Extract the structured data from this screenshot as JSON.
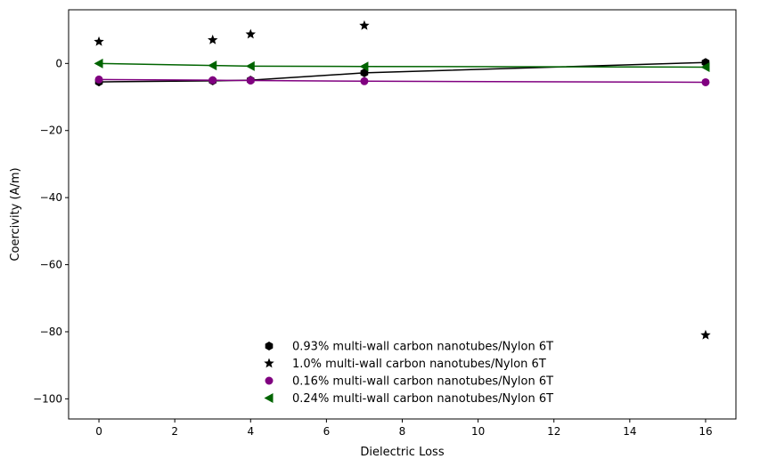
{
  "chart_data": {
    "type": "scatter",
    "xlabel": "Dielectric Loss",
    "ylabel": "Coercivity (A/m)",
    "xlim": [
      -0.8,
      16.8
    ],
    "ylim": [
      -106,
      16
    ],
    "xticks": [
      0,
      2,
      4,
      6,
      8,
      10,
      12,
      14,
      16
    ],
    "yticks": [
      0,
      -20,
      -40,
      -60,
      -80,
      -100
    ],
    "xtick_labels": [
      "0",
      "2",
      "4",
      "6",
      "8",
      "10",
      "12",
      "14",
      "16"
    ],
    "ytick_labels": [
      "0",
      "−20",
      "−40",
      "−60",
      "−80",
      "−100"
    ],
    "grid": false,
    "legend_position": "lower-center",
    "series": [
      {
        "name": "0.93% multi-wall carbon nanotubes/Nylon 6T",
        "color": "#000000",
        "marker": "hexagon",
        "line": true,
        "points": [
          [
            0,
            -5.5
          ],
          [
            3,
            -5.2
          ],
          [
            4,
            -5.0
          ],
          [
            7,
            -2.8
          ],
          [
            16,
            0.3
          ]
        ]
      },
      {
        "name": "1.0% multi-wall carbon nanotubes/Nylon 6T",
        "color": "#000000",
        "marker": "star",
        "line": false,
        "points": [
          [
            0,
            6.5
          ],
          [
            3,
            7.0
          ],
          [
            4,
            8.7
          ],
          [
            7,
            11.3
          ],
          [
            16,
            -81.0
          ]
        ]
      },
      {
        "name": "0.16% multi-wall carbon nanotubes/Nylon 6T",
        "color": "#800080",
        "marker": "circle",
        "line": true,
        "points": [
          [
            0,
            -4.8
          ],
          [
            3,
            -5.0
          ],
          [
            4,
            -5.1
          ],
          [
            7,
            -5.3
          ],
          [
            16,
            -5.6
          ]
        ]
      },
      {
        "name": "0.24% multi-wall carbon nanotubes/Nylon 6T",
        "color": "#006400",
        "marker": "triangle-left",
        "line": true,
        "points": [
          [
            0,
            0.0
          ],
          [
            3,
            -0.6
          ],
          [
            4,
            -0.8
          ],
          [
            7,
            -0.9
          ],
          [
            16,
            -1.1
          ]
        ]
      }
    ]
  }
}
